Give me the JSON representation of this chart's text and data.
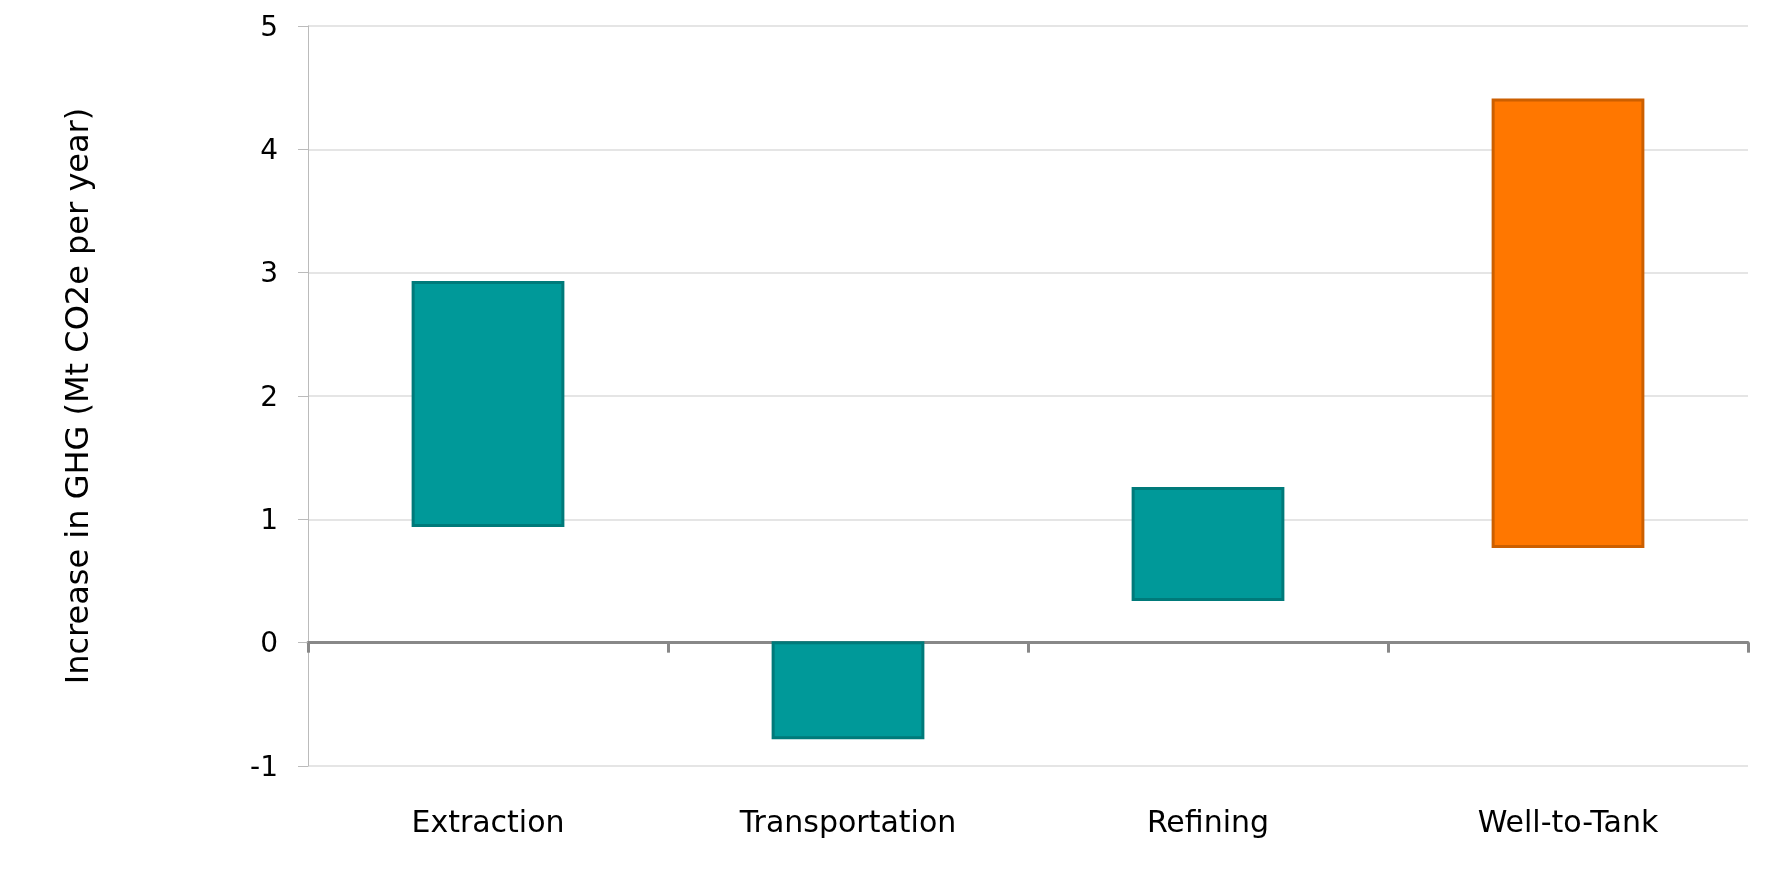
{
  "chart_data": {
    "type": "bar",
    "ylabel": "Increase in GHG (Mt CO2e per year)",
    "categories": [
      "Extraction",
      "Transportation",
      "Refining",
      "Well-to-Tank"
    ],
    "base": [
      0.95,
      -0.77,
      0.35,
      0.78
    ],
    "values": [
      1.97,
      0.77,
      0.9,
      3.62
    ],
    "colors": [
      "#009999",
      "#009999",
      "#009999",
      "#ff7700"
    ],
    "ylim": [
      -1,
      5
    ],
    "yticks": [
      -1,
      0,
      1,
      2,
      3,
      4,
      5
    ],
    "grid": "y"
  }
}
